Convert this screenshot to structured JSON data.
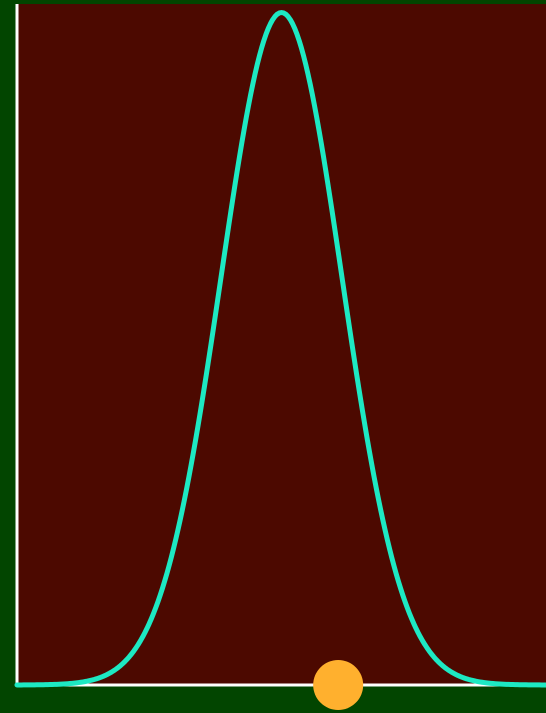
{
  "colors": {
    "page_background": "#024500",
    "plot_background": "#4c0900",
    "axis": "#ffffff",
    "curve": "#1de9c3",
    "marker": "#ffb02e"
  },
  "chart_data": {
    "type": "line",
    "title": "",
    "xlabel": "",
    "ylabel": "",
    "grid": false,
    "legend": "none",
    "xlim": [
      -3.5,
      3.5
    ],
    "ylim": [
      0,
      0.505
    ],
    "series": [
      {
        "curve": "normal-density",
        "mean": 0,
        "sd": 0.8,
        "x": [
          -3.5,
          -3.25,
          -3.0,
          -2.75,
          -2.5,
          -2.25,
          -2.0,
          -1.75,
          -1.5,
          -1.25,
          -1.0,
          -0.75,
          -0.5,
          -0.25,
          0.0,
          0.25,
          0.5,
          0.75,
          1.0,
          1.25,
          1.5,
          1.75,
          2.0,
          2.25,
          2.5,
          2.75,
          3.0,
          3.25,
          3.5
        ],
        "y": [
          0.0001,
          0.0003,
          0.0004,
          0.0011,
          0.0037,
          0.0095,
          0.0219,
          0.0455,
          0.0857,
          0.1457,
          0.2283,
          0.3216,
          0.4091,
          0.4741,
          0.4987,
          0.4741,
          0.4091,
          0.3216,
          0.2283,
          0.1457,
          0.0857,
          0.0455,
          0.0219,
          0.0095,
          0.0037,
          0.0011,
          0.0004,
          0.0003,
          0.0001
        ]
      }
    ],
    "marker": {
      "x": 0.75,
      "y": 0
    }
  }
}
